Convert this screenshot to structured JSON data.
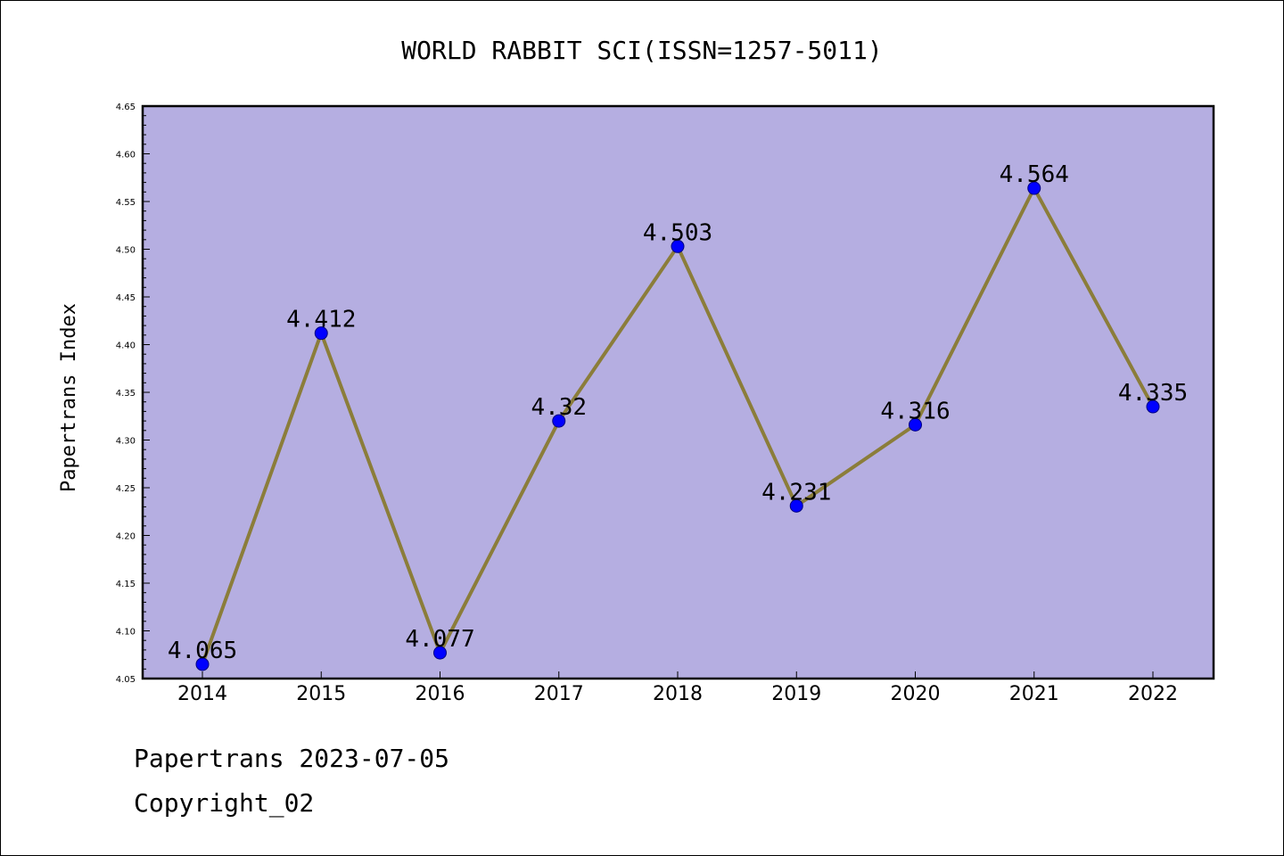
{
  "footer": {
    "line1": "Papertrans 2023-07-05",
    "line2": "Copyright_02"
  },
  "chart_data": {
    "type": "line",
    "title": "WORLD RABBIT SCI(ISSN=1257-5011)",
    "xlabel": "",
    "ylabel": "Papertrans Index",
    "categories": [
      "2014",
      "2015",
      "2016",
      "2017",
      "2018",
      "2019",
      "2020",
      "2021",
      "2022"
    ],
    "series": [
      {
        "values": [
          4.065,
          4.412,
          4.077,
          4.32,
          4.503,
          4.231,
          4.316,
          4.564,
          4.335
        ],
        "labels": [
          "4.065",
          "4.412",
          "4.077",
          "4.32",
          "4.503",
          "4.231",
          "4.316",
          "4.564",
          "4.335"
        ]
      }
    ],
    "ylim": [
      4.05,
      4.65
    ],
    "yticks": [
      "4.05",
      "4.10",
      "4.15",
      "4.20",
      "4.25",
      "4.30",
      "4.35",
      "4.40",
      "4.45",
      "4.50",
      "4.55",
      "4.60",
      "4.65"
    ],
    "grid": false,
    "legend": "none",
    "colors": {
      "plot_background": "#b5aee1",
      "line": "#8b7d3a",
      "marker_fill": "#0000ff",
      "marker_edge": "#000080"
    }
  }
}
